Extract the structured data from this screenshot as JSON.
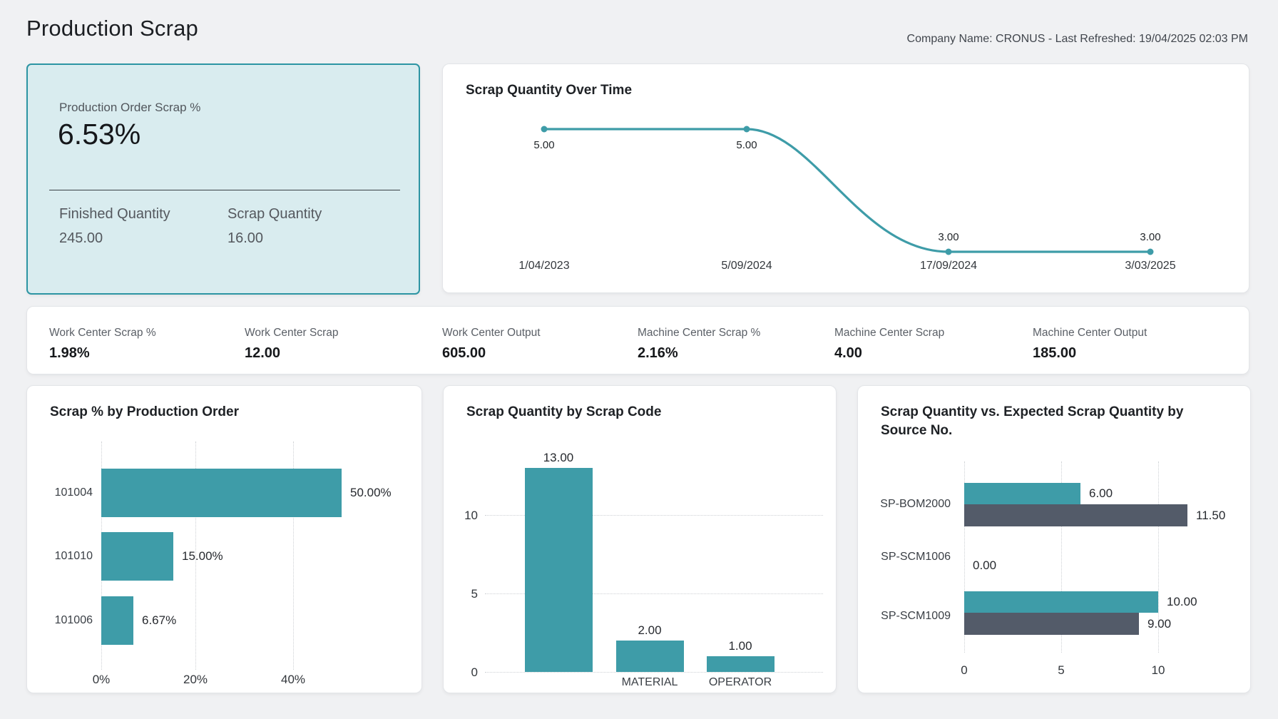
{
  "header": {
    "title": "Production Scrap",
    "company_info": "Company Name: CRONUS - Last Refreshed: 19/04/2025 02:03 PM"
  },
  "kpi": {
    "label": "Production Order Scrap %",
    "value": "6.53%",
    "finished_label": "Finished Quantity",
    "finished_value": "245.00",
    "scrap_label": "Scrap Quantity",
    "scrap_value": "16.00"
  },
  "metrics": [
    {
      "label": "Work Center Scrap %",
      "value": "1.98%"
    },
    {
      "label": "Work Center Scrap",
      "value": "12.00"
    },
    {
      "label": "Work Center Output",
      "value": "605.00"
    },
    {
      "label": "Machine Center Scrap %",
      "value": "2.16%"
    },
    {
      "label": "Machine Center Scrap",
      "value": "4.00"
    },
    {
      "label": "Machine Center Output",
      "value": "185.00"
    }
  ],
  "chart_data": [
    {
      "type": "line",
      "title": "Scrap Quantity Over Time",
      "x": [
        "1/04/2023",
        "5/09/2024",
        "17/09/2024",
        "3/03/2025"
      ],
      "values": [
        5.0,
        5.0,
        3.0,
        3.0
      ],
      "data_labels": [
        "5.00",
        "5.00",
        "3.00",
        "3.00"
      ],
      "label_positions": [
        "below",
        "below",
        "above",
        "above"
      ],
      "ylim": [
        3,
        5
      ],
      "grid": "off",
      "legend": "none",
      "smooth": true
    },
    {
      "type": "bar",
      "orientation": "horizontal",
      "title": "Scrap % by Production Order",
      "categories": [
        "101004",
        "101010",
        "101006"
      ],
      "values": [
        50.0,
        15.0,
        6.67
      ],
      "data_labels": [
        "50.00%",
        "15.00%",
        "6.67%"
      ],
      "x_ticks": [
        "0%",
        "20%",
        "40%"
      ],
      "x_tick_values": [
        0,
        20,
        40
      ],
      "xlim": [
        0,
        55
      ],
      "grid": "dotted-vertical",
      "legend": "none"
    },
    {
      "type": "bar",
      "orientation": "vertical",
      "title": "Scrap Quantity by Scrap Code",
      "categories": [
        "",
        "MATERIAL",
        "OPERATOR"
      ],
      "values": [
        13.0,
        2.0,
        1.0
      ],
      "data_labels": [
        "13.00",
        "2.00",
        "1.00"
      ],
      "y_ticks": [
        "0",
        "5",
        "10"
      ],
      "y_tick_values": [
        0,
        5,
        10
      ],
      "ylim": [
        0,
        13
      ],
      "grid": "dotted-horizontal",
      "legend": "none"
    },
    {
      "type": "bar",
      "orientation": "horizontal-grouped",
      "title": "Scrap Quantity vs. Expected Scrap Quantity by Source No.",
      "categories": [
        "SP-BOM2000",
        "SP-SCM1006",
        "SP-SCM1009"
      ],
      "series": [
        {
          "name": "Scrap Quantity",
          "values": [
            6.0,
            0.0,
            10.0
          ],
          "data_labels": [
            "6.00",
            "0.00",
            "10.00"
          ]
        },
        {
          "name": "Expected Scrap Quantity",
          "values": [
            11.5,
            null,
            9.0
          ],
          "data_labels": [
            "11.50",
            "",
            "9.00"
          ]
        }
      ],
      "x_ticks": [
        "0",
        "5",
        "10"
      ],
      "x_tick_values": [
        0,
        5,
        10
      ],
      "xlim": [
        0,
        13
      ],
      "grid": "dotted-vertical",
      "legend": "none"
    }
  ],
  "colors": {
    "teal": "#3E9CA8",
    "slate": "#535B69",
    "kpi_bg": "#D9ECEF",
    "kpi_border": "#2D95A3",
    "page_bg": "#F0F1F3",
    "grid": "#CDD0D4"
  }
}
